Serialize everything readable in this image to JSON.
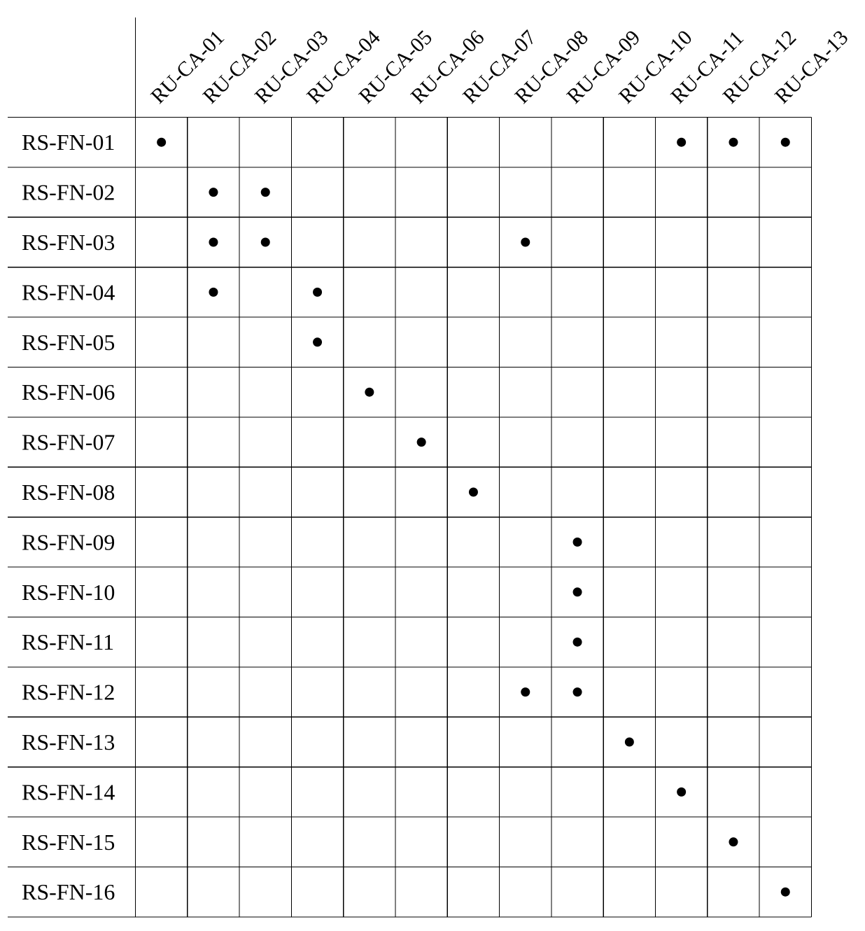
{
  "matrix": {
    "columns": [
      "RU-CA-01",
      "RU-CA-02",
      "RU-CA-03",
      "RU-CA-04",
      "RU-CA-05",
      "RU-CA-06",
      "RU-CA-07",
      "RU-CA-08",
      "RU-CA-09",
      "RU-CA-10",
      "RU-CA-11",
      "RU-CA-12",
      "RU-CA-13"
    ],
    "rows": [
      {
        "label": "RS-FN-01",
        "marks": [
          "RU-CA-01",
          "RU-CA-11",
          "RU-CA-12",
          "RU-CA-13"
        ]
      },
      {
        "label": "RS-FN-02",
        "marks": [
          "RU-CA-02",
          "RU-CA-03"
        ]
      },
      {
        "label": "RS-FN-03",
        "marks": [
          "RU-CA-02",
          "RU-CA-03",
          "RU-CA-08"
        ]
      },
      {
        "label": "RS-FN-04",
        "marks": [
          "RU-CA-02",
          "RU-CA-04"
        ]
      },
      {
        "label": "RS-FN-05",
        "marks": [
          "RU-CA-04"
        ]
      },
      {
        "label": "RS-FN-06",
        "marks": [
          "RU-CA-05"
        ]
      },
      {
        "label": "RS-FN-07",
        "marks": [
          "RU-CA-06"
        ]
      },
      {
        "label": "RS-FN-08",
        "marks": [
          "RU-CA-07"
        ]
      },
      {
        "label": "RS-FN-09",
        "marks": [
          "RU-CA-09"
        ]
      },
      {
        "label": "RS-FN-10",
        "marks": [
          "RU-CA-09"
        ]
      },
      {
        "label": "RS-FN-11",
        "marks": [
          "RU-CA-09"
        ]
      },
      {
        "label": "RS-FN-12",
        "marks": [
          "RU-CA-08",
          "RU-CA-09"
        ]
      },
      {
        "label": "RS-FN-13",
        "marks": [
          "RU-CA-10"
        ]
      },
      {
        "label": "RS-FN-14",
        "marks": [
          "RU-CA-11"
        ]
      },
      {
        "label": "RS-FN-15",
        "marks": [
          "RU-CA-12"
        ]
      },
      {
        "label": "RS-FN-16",
        "marks": [
          "RU-CA-13"
        ]
      }
    ]
  }
}
